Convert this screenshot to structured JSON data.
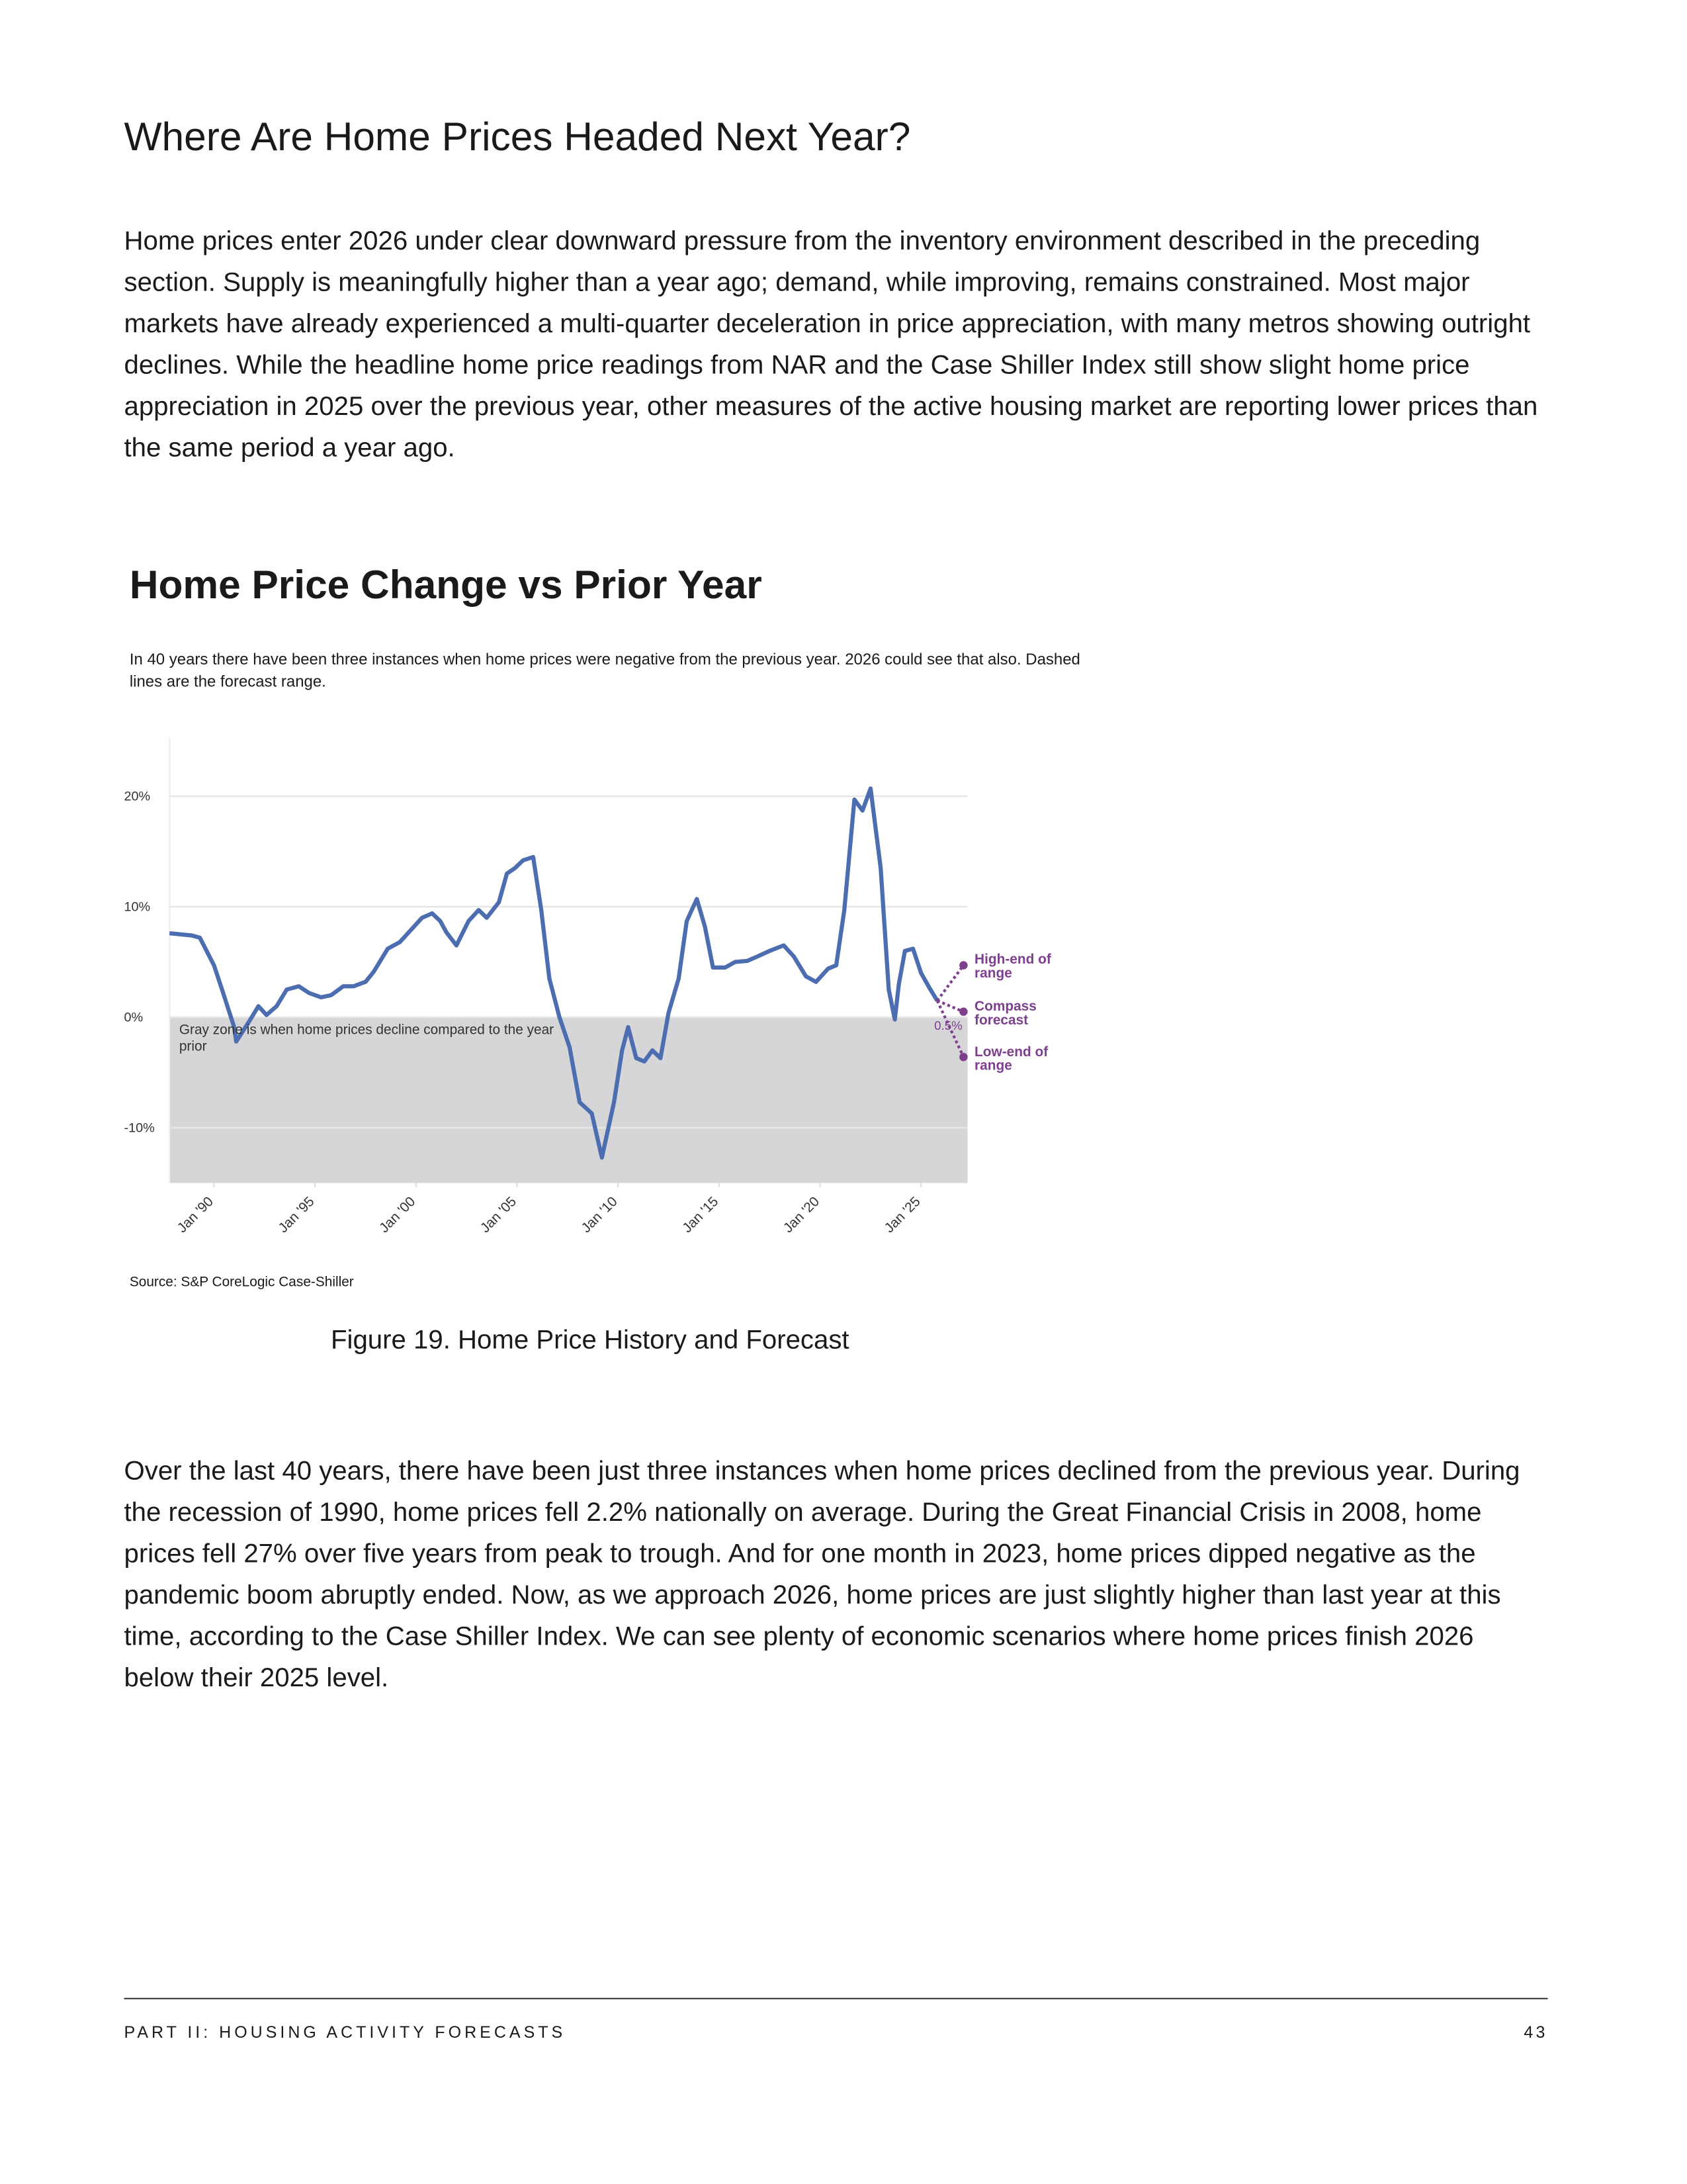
{
  "header": {
    "title": "Where Are Home Prices Headed Next Year?"
  },
  "paragraphs": [
    "Home prices enter 2026 under clear downward pressure from the inventory environment described in the preceding section. Supply is meaningfully higher than a year ago; demand, while improving, remains constrained. Most major markets have already experienced a multi-quarter deceleration in price appreciation, with many metros showing outright declines. While the headline home price readings from NAR and the Case Shiller Index still show slight home price appreciation in 2025 over the previous year, other measures of the active housing market are reporting lower prices than the same period a year ago.",
    "Over the last 40 years, there have been just three instances when home prices declined from the previous year. During the recession of 1990, home prices fell 2.2% nationally on average. During the Great Financial Crisis in 2008, home prices fell 27% over five years from peak to trough. And for one month in 2023, home prices dipped negative as the pandemic boom abruptly ended. Now, as we approach 2026, home prices are just slightly higher than last year at this time, according to the Case Shiller Index. We can see plenty of economic scenarios where home prices finish 2026 below their 2025 level."
  ],
  "chart_data": {
    "type": "line",
    "title": "Home Price Change vs Prior Year",
    "subtitle": "In 40 years there have been three instances when home prices were negative from the previous year. 2026 could see that also. Dashed lines are the forecast range.",
    "source": "Source: S&P CoreLogic Case-Shiller",
    "annotation": "Gray zone is when home prices decline compared to the year prior",
    "xlim": [
      1987.8,
      2027.3
    ],
    "ylim": [
      -15,
      25.3
    ],
    "xticks": [
      {
        "value": 1990,
        "label": "Jan '90"
      },
      {
        "value": 1995,
        "label": "Jan '95"
      },
      {
        "value": 2000,
        "label": "Jan '00"
      },
      {
        "value": 2005,
        "label": "Jan '05"
      },
      {
        "value": 2010,
        "label": "Jan '10"
      },
      {
        "value": 2015,
        "label": "Jan '15"
      },
      {
        "value": 2020,
        "label": "Jan '20"
      },
      {
        "value": 2025,
        "label": "Jan '25"
      }
    ],
    "yticks": [
      {
        "value": 20,
        "label": "20%"
      },
      {
        "value": 10,
        "label": "10%"
      },
      {
        "value": 0,
        "label": "0%"
      },
      {
        "value": -10,
        "label": "-10%"
      }
    ],
    "grid": true,
    "negative_zone_color": "#d6d5d8",
    "series": [
      {
        "color": "#4c6db0",
        "dashed": false,
        "x": [
          1987.8,
          1988.9,
          1989.3,
          1990,
          1990.4,
          1991,
          1991.1,
          1991.7,
          1992.2,
          1992.6,
          1993.1,
          1993.6,
          1994.2,
          1994.7,
          1995.3,
          1995.8,
          1996.4,
          1996.9,
          1997.5,
          1997.9,
          1998.6,
          1999.2,
          1999.7,
          2000.3,
          2000.8,
          2001.2,
          2001.5,
          2002,
          2002.6,
          2003.1,
          2003.5,
          2004.1,
          2004.5,
          2004.9,
          2005.3,
          2005.8,
          2006.2,
          2006.6,
          2007.1,
          2007.6,
          2008.1,
          2008.7,
          2009.2,
          2009.8,
          2010.2,
          2010.5,
          2010.9,
          2011.3,
          2011.7,
          2012.1,
          2012.5,
          2013,
          2013.4,
          2013.9,
          2014.3,
          2014.7,
          2015.3,
          2015.8,
          2016.4,
          2016.9,
          2017.5,
          2018.2,
          2018.7,
          2019.3,
          2019.8,
          2020.4,
          2020.8,
          2021.2,
          2021.7,
          2022.1,
          2022.5,
          2023,
          2023.4,
          2023.7,
          2023.9,
          2024.2,
          2024.6,
          2025,
          2025.4,
          2025.8
        ],
        "values": [
          7.6,
          7.4,
          7.2,
          4.7,
          2.5,
          -0.9,
          -2.2,
          -0.5,
          1,
          0.2,
          1,
          2.5,
          2.8,
          2.2,
          1.8,
          2,
          2.8,
          2.8,
          3.2,
          4.1,
          6.2,
          6.8,
          7.8,
          9,
          9.4,
          8.7,
          7.7,
          6.5,
          8.7,
          9.7,
          9,
          10.4,
          13,
          13.5,
          14.2,
          14.5,
          9.7,
          3.5,
          0,
          -2.7,
          -7.7,
          -8.7,
          -12.7,
          -7.7,
          -3,
          -0.9,
          -3.7,
          -4,
          -3,
          -3.7,
          0.4,
          3.5,
          8.7,
          10.7,
          8.2,
          4.5,
          4.5,
          5,
          5.1,
          5.5,
          6,
          6.5,
          5.5,
          3.7,
          3.2,
          4.4,
          4.7,
          9.7,
          19.7,
          18.7,
          20.7,
          13.5,
          2.5,
          -0.2,
          3,
          6,
          6.2,
          4,
          2.7,
          1.5
        ]
      },
      {
        "name": "High-end of range",
        "color": "#7e3f8f",
        "dashed": true,
        "x": [
          2025.8,
          2027.1
        ],
        "values": [
          1.5,
          4.7
        ]
      },
      {
        "name": "Compass forecast",
        "color": "#7e3f8f",
        "dashed": true,
        "x": [
          2025.8,
          2027.1
        ],
        "values": [
          1.5,
          0.5
        ],
        "value_labels": [
          null,
          "0.5%"
        ]
      },
      {
        "name": "Low-end of range",
        "color": "#7e3f8f",
        "dashed": true,
        "x": [
          2025.8,
          2027.1
        ],
        "values": [
          1.5,
          -3.6
        ]
      }
    ]
  },
  "figure_caption": "Figure 19. Home Price History and Forecast",
  "footer": {
    "section": "PART II: HOUSING ACTIVITY FORECASTS",
    "page": "43"
  }
}
